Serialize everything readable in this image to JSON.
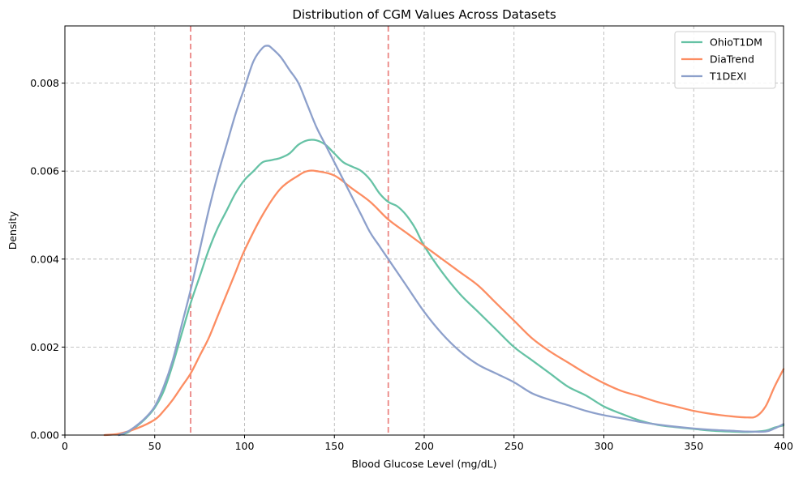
{
  "chart_data": {
    "type": "line",
    "title": "Distribution of CGM Values Across Datasets",
    "xlabel": "Blood Glucose Level (mg/dL)",
    "ylabel": "Density",
    "xlim": [
      0,
      400
    ],
    "ylim": [
      0,
      0.0093
    ],
    "x_ticks": [
      0,
      50,
      100,
      150,
      200,
      250,
      300,
      350,
      400
    ],
    "x_tick_labels": [
      "0",
      "50",
      "100",
      "150",
      "200",
      "250",
      "300",
      "350",
      "400"
    ],
    "y_ticks": [
      0,
      0.002,
      0.004,
      0.006,
      0.008
    ],
    "y_tick_labels": [
      "0.000",
      "0.002",
      "0.004",
      "0.006",
      "0.008"
    ],
    "grid": true,
    "legend_position": "top-right",
    "reference_lines": [
      {
        "x": 70,
        "color": "#e8706e"
      },
      {
        "x": 180,
        "color": "#e8706e"
      }
    ],
    "series": [
      {
        "name": "OhioT1DM",
        "color": "#66c2a5",
        "x": [
          30,
          35,
          40,
          45,
          50,
          55,
          60,
          65,
          70,
          75,
          80,
          85,
          90,
          95,
          100,
          105,
          110,
          115,
          120,
          125,
          130,
          135,
          140,
          145,
          150,
          155,
          160,
          165,
          170,
          175,
          180,
          185,
          190,
          195,
          200,
          210,
          220,
          230,
          240,
          250,
          260,
          270,
          280,
          290,
          300,
          310,
          320,
          330,
          340,
          350,
          360,
          370,
          380,
          390,
          395,
          400
        ],
        "y": [
          0.0,
          6e-05,
          0.0002,
          0.00038,
          0.00062,
          0.001,
          0.0016,
          0.0023,
          0.003,
          0.0036,
          0.0042,
          0.0047,
          0.0051,
          0.0055,
          0.0058,
          0.006,
          0.0062,
          0.00625,
          0.0063,
          0.0064,
          0.0066,
          0.0067,
          0.0067,
          0.0066,
          0.0064,
          0.0062,
          0.0061,
          0.006,
          0.0058,
          0.0055,
          0.0053,
          0.0052,
          0.005,
          0.0047,
          0.0043,
          0.0037,
          0.0032,
          0.0028,
          0.0024,
          0.002,
          0.0017,
          0.0014,
          0.0011,
          0.0009,
          0.00065,
          0.00048,
          0.00033,
          0.00023,
          0.00018,
          0.00014,
          0.0001,
          8e-05,
          7e-05,
          0.0001,
          0.00017,
          0.00022
        ]
      },
      {
        "name": "DiaTrend",
        "color": "#fc8d62",
        "x": [
          22,
          30,
          40,
          50,
          55,
          60,
          65,
          70,
          75,
          80,
          85,
          90,
          95,
          100,
          110,
          120,
          130,
          135,
          140,
          150,
          160,
          170,
          180,
          190,
          200,
          210,
          220,
          230,
          240,
          250,
          260,
          270,
          280,
          290,
          300,
          310,
          320,
          330,
          340,
          350,
          360,
          370,
          380,
          385,
          390,
          395,
          400
        ],
        "y": [
          0.0,
          3e-05,
          0.00015,
          0.00035,
          0.00055,
          0.0008,
          0.0011,
          0.0014,
          0.0018,
          0.0022,
          0.0027,
          0.0032,
          0.0037,
          0.0042,
          0.005,
          0.0056,
          0.0059,
          0.006,
          0.006,
          0.0059,
          0.0056,
          0.0053,
          0.0049,
          0.0046,
          0.0043,
          0.004,
          0.0037,
          0.0034,
          0.003,
          0.0026,
          0.0022,
          0.0019,
          0.00165,
          0.0014,
          0.00118,
          0.001,
          0.00088,
          0.00075,
          0.00065,
          0.00055,
          0.00048,
          0.00043,
          0.0004,
          0.00043,
          0.00065,
          0.0011,
          0.0015
        ]
      },
      {
        "name": "T1DEXI",
        "color": "#8da0cb",
        "x": [
          30,
          35,
          40,
          45,
          50,
          55,
          60,
          65,
          70,
          75,
          80,
          85,
          90,
          95,
          100,
          105,
          110,
          113,
          115,
          120,
          125,
          130,
          135,
          140,
          145,
          150,
          155,
          160,
          165,
          170,
          175,
          180,
          190,
          200,
          210,
          220,
          230,
          240,
          250,
          260,
          270,
          280,
          290,
          300,
          310,
          320,
          330,
          340,
          350,
          360,
          370,
          380,
          390,
          395,
          400
        ],
        "y": [
          0.0,
          8e-05,
          0.00022,
          0.0004,
          0.00065,
          0.0011,
          0.0017,
          0.0025,
          0.0033,
          0.0042,
          0.0051,
          0.0059,
          0.0066,
          0.0073,
          0.0079,
          0.0085,
          0.0088,
          0.00885,
          0.0088,
          0.0086,
          0.0083,
          0.008,
          0.0075,
          0.007,
          0.0066,
          0.0062,
          0.0058,
          0.0054,
          0.005,
          0.0046,
          0.0043,
          0.004,
          0.0034,
          0.0028,
          0.0023,
          0.0019,
          0.0016,
          0.0014,
          0.0012,
          0.00095,
          0.0008,
          0.00068,
          0.00055,
          0.00045,
          0.00038,
          0.0003,
          0.00024,
          0.00019,
          0.00015,
          0.00012,
          0.0001,
          8e-05,
          8e-05,
          0.00015,
          0.00025
        ]
      }
    ]
  }
}
